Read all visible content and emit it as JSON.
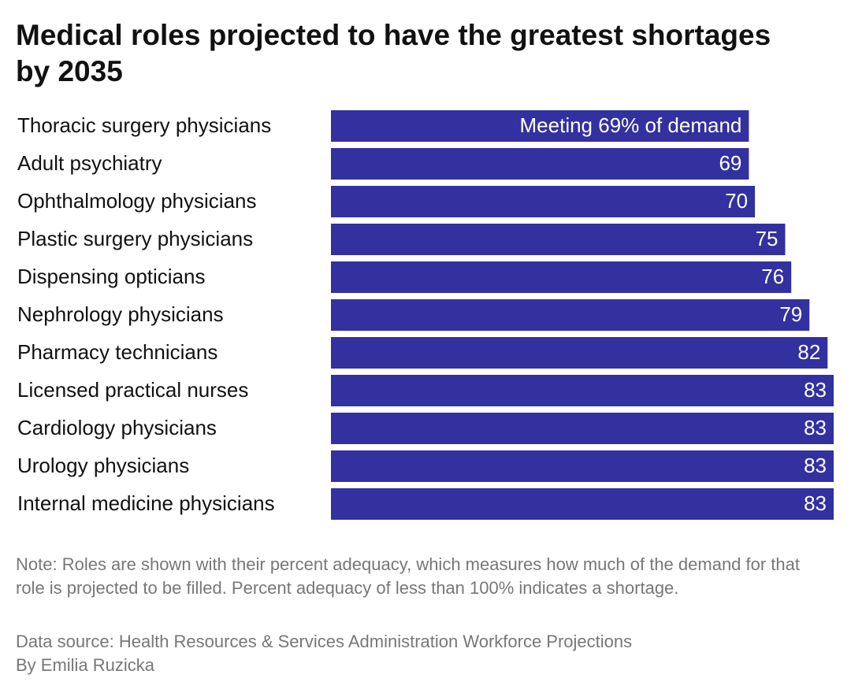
{
  "chart_data": {
    "type": "bar",
    "title": "Medical roles projected to have the greatest shortages by 2035",
    "categories": [
      "Thoracic surgery physicians",
      "Adult psychiatry",
      "Ophthalmology physicians",
      "Plastic surgery physicians",
      "Dispensing opticians",
      "Nephrology physicians",
      "Pharmacy technicians",
      "Licensed practical nurses",
      "Cardiology physicians",
      "Urology physicians",
      "Internal medicine physicians"
    ],
    "values": [
      69,
      69,
      70,
      75,
      76,
      79,
      82,
      83,
      83,
      83,
      83
    ],
    "value_labels": [
      "Meeting 69% of demand",
      "69",
      "70",
      "75",
      "76",
      "79",
      "82",
      "83",
      "83",
      "83",
      "83"
    ],
    "color": "#3330a0",
    "note": "Note: Roles are shown with their percent adequacy, which measures how much of the demand for that role is projected to be filled. Percent adequacy of less than 100% indicates a shortage.",
    "source": "Data source: Health Resources & Services Administration Workforce Projections",
    "byline": "By Emilia Ruzicka"
  }
}
